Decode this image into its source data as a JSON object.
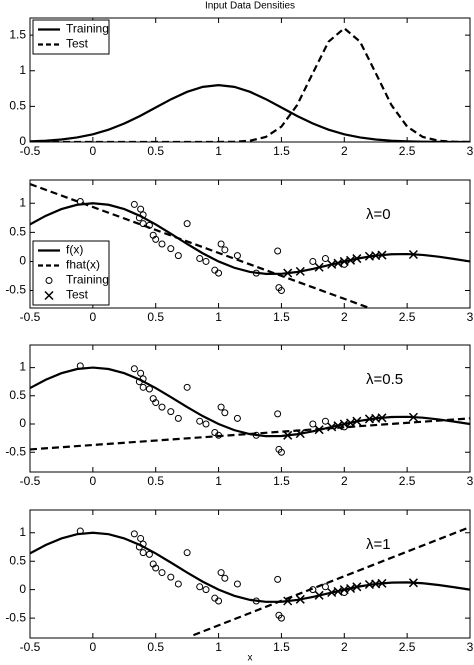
{
  "chart_data": [
    {
      "type": "line",
      "title": "Input Data Densities",
      "xlim": [
        -0.5,
        3
      ],
      "ylim": [
        0,
        1.74
      ],
      "xticks": [
        -0.5,
        0,
        0.5,
        1,
        1.5,
        2,
        2.5,
        3
      ],
      "yticks": [
        0,
        0.5,
        1,
        1.5
      ],
      "legend": "upper left",
      "series": [
        {
          "name": "Training",
          "color": "#000000",
          "style": "solid",
          "x": [
            -0.5,
            -0.375,
            -0.25,
            -0.125,
            0,
            0.125,
            0.25,
            0.375,
            0.5,
            0.625,
            0.75,
            0.875,
            1,
            1.125,
            1.25,
            1.375,
            1.5,
            1.625,
            1.75,
            1.875,
            2,
            2.125,
            2.25,
            2.375,
            2.5,
            2.625,
            2.75,
            2.875,
            3
          ],
          "values": [
            0.0089,
            0.0182,
            0.035,
            0.0635,
            0.108,
            0.1726,
            0.2591,
            0.3653,
            0.4839,
            0.6023,
            0.7041,
            0.7734,
            0.7979,
            0.7734,
            0.7041,
            0.6023,
            0.4839,
            0.3653,
            0.2591,
            0.1726,
            0.108,
            0.0635,
            0.035,
            0.0182,
            0.0089,
            0.0041,
            0.0017,
            0.0007,
            0.0003
          ]
        },
        {
          "name": "Test",
          "color": "#000000",
          "style": "dashed",
          "x": [
            -0.5,
            -0.375,
            -0.25,
            -0.125,
            0,
            0.125,
            0.25,
            0.375,
            0.5,
            0.625,
            0.75,
            0.875,
            1,
            1.125,
            1.25,
            1.375,
            1.5,
            1.625,
            1.75,
            1.875,
            2,
            2.125,
            2.25,
            2.375,
            2.5,
            2.625,
            2.75,
            2.875,
            3
          ],
          "values": [
            0,
            0,
            0,
            0,
            0,
            0,
            0,
            0,
            0,
            0,
            0,
            0.0001,
            0.0005,
            0.0035,
            0.0177,
            0.0701,
            0.216,
            0.5182,
            0.9679,
            1.4083,
            1.5958,
            1.4083,
            0.9679,
            0.5182,
            0.216,
            0.0701,
            0.0177,
            0.0035,
            0.0005
          ]
        }
      ]
    },
    {
      "type": "line",
      "annotation": "λ=0",
      "xlim": [
        -0.5,
        3
      ],
      "ylim": [
        -0.8,
        1.4
      ],
      "xticks": [
        -0.5,
        0,
        0.5,
        1,
        1.5,
        2,
        2.5,
        3
      ],
      "yticks": [
        -0.5,
        0,
        0.5,
        1
      ],
      "legend": "lower left",
      "series": [
        {
          "name": "f(x)",
          "color": "#000000",
          "style": "solid",
          "x": [
            -0.5,
            -0.375,
            -0.25,
            -0.125,
            0,
            0.125,
            0.25,
            0.375,
            0.5,
            0.625,
            0.75,
            0.875,
            1,
            1.125,
            1.25,
            1.375,
            1.5,
            1.625,
            1.75,
            1.875,
            2,
            2.125,
            2.25,
            2.375,
            2.5,
            2.625,
            2.75,
            2.875,
            3
          ],
          "values": [
            0.6366,
            0.7842,
            0.9003,
            0.9745,
            1,
            0.9745,
            0.9003,
            0.7842,
            0.6366,
            0.4705,
            0.3001,
            0.1392,
            0,
            -0.1083,
            -0.1801,
            -0.2139,
            -0.2122,
            -0.181,
            -0.1286,
            -0.065,
            0,
            0.0573,
            0.1,
            0.1238,
            0.1273,
            0.112,
            0.0818,
            0.0424,
            0
          ]
        },
        {
          "name": "fhat(x)",
          "color": "#000000",
          "style": "dashed",
          "x": [
            -0.5,
            2.2
          ],
          "values": [
            1.33,
            -0.8
          ]
        },
        {
          "name": "Training",
          "color": "#000000",
          "style": "circle",
          "x": [
            -0.1,
            0.33,
            0.38,
            0.4,
            0.37,
            0.4,
            0.45,
            0.48,
            0.5,
            0.55,
            0.75,
            0.62,
            0.68,
            0.85,
            0.9,
            0.97,
            1.0,
            1.02,
            1.05,
            1.15,
            1.3,
            1.47,
            1.48,
            1.5,
            1.75,
            1.85,
            2.0
          ],
          "values": [
            1.03,
            0.98,
            0.9,
            0.8,
            0.75,
            0.65,
            0.62,
            0.45,
            0.38,
            0.3,
            0.65,
            0.22,
            0.1,
            0.05,
            0.0,
            -0.15,
            -0.2,
            0.3,
            0.2,
            0.1,
            -0.2,
            0.18,
            -0.45,
            -0.5,
            0.0,
            0.05,
            -0.05
          ]
        },
        {
          "name": "Test",
          "color": "#000000",
          "style": "x",
          "x": [
            1.55,
            1.65,
            1.8,
            1.9,
            1.95,
            2.0,
            2.05,
            2.1,
            2.2,
            2.25,
            2.3,
            2.55
          ],
          "values": [
            -0.2,
            -0.17,
            -0.1,
            -0.05,
            -0.03,
            0,
            0.02,
            0.05,
            0.09,
            0.1,
            0.11,
            0.12
          ]
        }
      ]
    },
    {
      "type": "line",
      "annotation": "λ=0.5",
      "xlim": [
        -0.5,
        3
      ],
      "ylim": [
        -0.85,
        1.4
      ],
      "xticks": [
        -0.5,
        0,
        0.5,
        1,
        1.5,
        2,
        2.5,
        3
      ],
      "yticks": [
        -0.5,
        0,
        0.5,
        1
      ],
      "series": [
        {
          "color": "#000000",
          "style": "solid",
          "x": [
            -0.5,
            -0.375,
            -0.25,
            -0.125,
            0,
            0.125,
            0.25,
            0.375,
            0.5,
            0.625,
            0.75,
            0.875,
            1,
            1.125,
            1.25,
            1.375,
            1.5,
            1.625,
            1.75,
            1.875,
            2,
            2.125,
            2.25,
            2.375,
            2.5,
            2.625,
            2.75,
            2.875,
            3
          ],
          "values": [
            0.6366,
            0.7842,
            0.9003,
            0.9745,
            1,
            0.9745,
            0.9003,
            0.7842,
            0.6366,
            0.4705,
            0.3001,
            0.1392,
            0,
            -0.1083,
            -0.1801,
            -0.2139,
            -0.2122,
            -0.181,
            -0.1286,
            -0.065,
            0,
            0.0573,
            0.1,
            0.1238,
            0.1273,
            0.112,
            0.0818,
            0.0424,
            0
          ]
        },
        {
          "color": "#000000",
          "style": "dashed",
          "x": [
            -0.5,
            3
          ],
          "values": [
            -0.45,
            0.1
          ]
        },
        {
          "color": "#000000",
          "style": "circle",
          "x": [
            -0.1,
            0.33,
            0.38,
            0.4,
            0.37,
            0.4,
            0.45,
            0.48,
            0.5,
            0.55,
            0.75,
            0.62,
            0.68,
            0.85,
            0.9,
            0.97,
            1.0,
            1.02,
            1.05,
            1.15,
            1.3,
            1.47,
            1.48,
            1.5,
            1.75,
            1.85,
            2.0
          ],
          "values": [
            1.03,
            0.98,
            0.9,
            0.8,
            0.75,
            0.65,
            0.62,
            0.45,
            0.38,
            0.3,
            0.65,
            0.22,
            0.1,
            0.05,
            0.0,
            -0.15,
            -0.2,
            0.3,
            0.2,
            0.1,
            -0.2,
            0.18,
            -0.45,
            -0.5,
            0.0,
            0.05,
            -0.05
          ]
        },
        {
          "color": "#000000",
          "style": "x",
          "x": [
            1.55,
            1.65,
            1.8,
            1.9,
            1.95,
            2.0,
            2.05,
            2.1,
            2.2,
            2.25,
            2.3,
            2.55
          ],
          "values": [
            -0.2,
            -0.17,
            -0.1,
            -0.05,
            -0.03,
            0,
            0.02,
            0.05,
            0.09,
            0.1,
            0.11,
            0.12
          ]
        }
      ]
    },
    {
      "type": "line",
      "annotation": "λ=1",
      "xlabel": "x",
      "xlim": [
        -0.5,
        3
      ],
      "ylim": [
        -0.85,
        1.4
      ],
      "xticks": [
        -0.5,
        0,
        0.5,
        1,
        1.5,
        2,
        2.5,
        3
      ],
      "yticks": [
        -0.5,
        0,
        0.5,
        1
      ],
      "series": [
        {
          "color": "#000000",
          "style": "solid",
          "x": [
            -0.5,
            -0.375,
            -0.25,
            -0.125,
            0,
            0.125,
            0.25,
            0.375,
            0.5,
            0.625,
            0.75,
            0.875,
            1,
            1.125,
            1.25,
            1.375,
            1.5,
            1.625,
            1.75,
            1.875,
            2,
            2.125,
            2.25,
            2.375,
            2.5,
            2.625,
            2.75,
            2.875,
            3
          ],
          "values": [
            0.6366,
            0.7842,
            0.9003,
            0.9745,
            1,
            0.9745,
            0.9003,
            0.7842,
            0.6366,
            0.4705,
            0.3001,
            0.1392,
            0,
            -0.1083,
            -0.1801,
            -0.2139,
            -0.2122,
            -0.181,
            -0.1286,
            -0.065,
            0,
            0.0573,
            0.1,
            0.1238,
            0.1273,
            0.112,
            0.0818,
            0.0424,
            0
          ]
        },
        {
          "color": "#000000",
          "style": "dashed",
          "x": [
            0.8,
            3
          ],
          "values": [
            -0.8,
            1.1
          ]
        },
        {
          "color": "#000000",
          "style": "circle",
          "x": [
            -0.1,
            0.33,
            0.38,
            0.4,
            0.37,
            0.4,
            0.45,
            0.48,
            0.5,
            0.55,
            0.75,
            0.62,
            0.68,
            0.85,
            0.9,
            0.97,
            1.0,
            1.02,
            1.05,
            1.15,
            1.3,
            1.47,
            1.48,
            1.5,
            1.75,
            1.85,
            2.0
          ],
          "values": [
            1.03,
            0.98,
            0.9,
            0.8,
            0.75,
            0.65,
            0.62,
            0.45,
            0.38,
            0.3,
            0.65,
            0.22,
            0.1,
            0.05,
            0.0,
            -0.15,
            -0.2,
            0.3,
            0.2,
            0.1,
            -0.2,
            0.18,
            -0.45,
            -0.5,
            0.0,
            0.05,
            -0.05
          ]
        },
        {
          "color": "#000000",
          "style": "x",
          "x": [
            1.55,
            1.65,
            1.8,
            1.9,
            1.95,
            2.0,
            2.05,
            2.1,
            2.2,
            2.25,
            2.3,
            2.55
          ],
          "values": [
            -0.2,
            -0.17,
            -0.1,
            -0.05,
            -0.03,
            0,
            0.02,
            0.05,
            0.09,
            0.1,
            0.11,
            0.12
          ]
        }
      ]
    }
  ]
}
